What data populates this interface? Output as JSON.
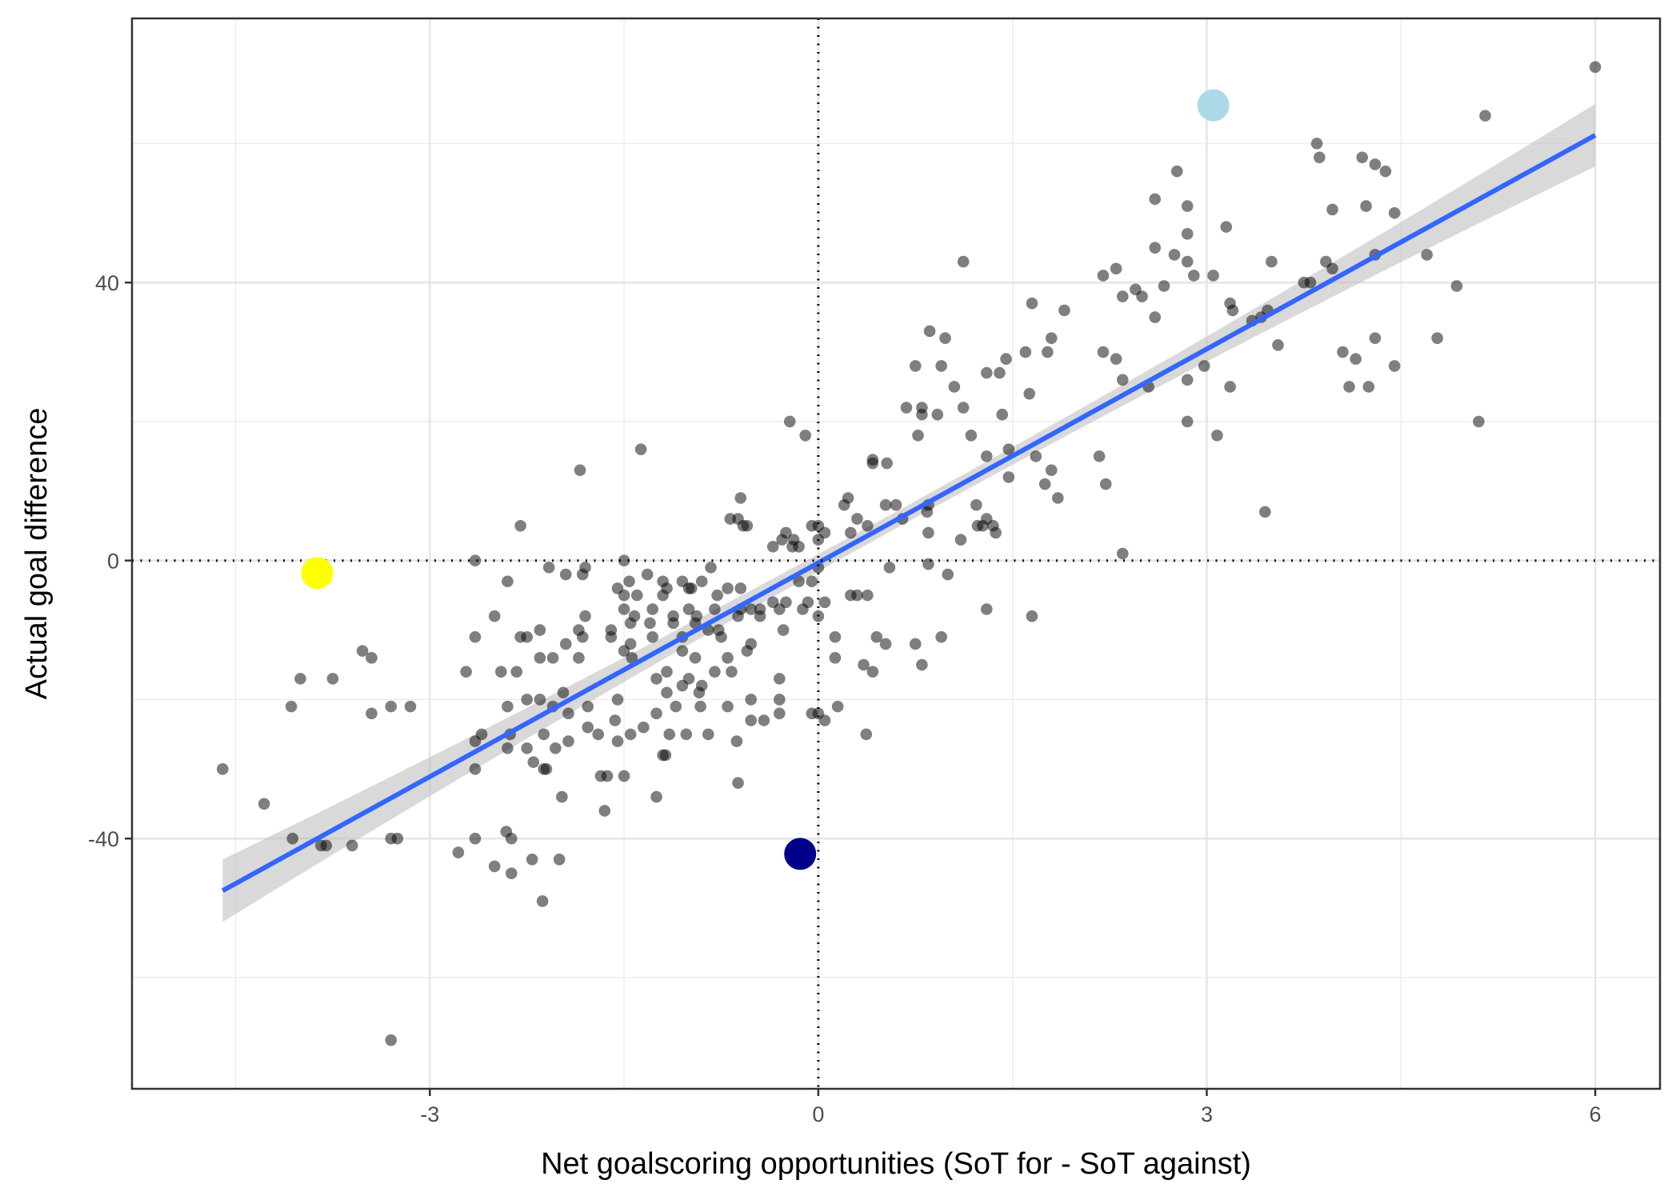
{
  "chart_data": {
    "type": "scatter",
    "xlabel": "Net goalscoring opportunities (SoT for - SoT against)",
    "ylabel": "Actual goal difference",
    "xlim": [
      -5.3,
      6.5
    ],
    "ylim": [
      -76,
      78
    ],
    "x_ticks": [
      -3,
      0,
      3,
      6
    ],
    "x_tick_labels": [
      "-3",
      "0",
      "3",
      "6"
    ],
    "y_ticks": [
      -40,
      0,
      40
    ],
    "y_tick_labels": [
      "-40",
      "0",
      "40"
    ],
    "x_minor_gridlines": [
      -4.5,
      -1.5,
      1.5,
      4.5
    ],
    "y_minor_gridlines": [
      -60,
      -20,
      20,
      60
    ],
    "grid": true,
    "reference_lines": [
      {
        "orientation": "vertical",
        "value": 0,
        "style": "dotted"
      },
      {
        "orientation": "horizontal",
        "value": 0,
        "style": "dotted"
      }
    ],
    "regression": {
      "type": "linear",
      "x_range": [
        -4.6,
        6.0
      ],
      "y_start": -47.5,
      "y_end": 61.2,
      "ci_halfwidth": [
        3.4,
        4.5
      ],
      "line_color": "#3366ff",
      "band_color": "#bfbfbf"
    },
    "point_color": "#000000",
    "point_opacity": 0.5,
    "highlights": [
      {
        "x": 3.05,
        "y": 65.5,
        "color": "#add8e6"
      },
      {
        "x": -3.87,
        "y": -1.8,
        "color": "#ffff00"
      },
      {
        "x": -0.14,
        "y": -42.2,
        "color": "#00008b"
      }
    ],
    "points": [
      [
        6.0,
        71
      ],
      [
        5.15,
        64
      ],
      [
        3.85,
        60
      ],
      [
        3.87,
        58
      ],
      [
        4.2,
        58
      ],
      [
        4.3,
        57
      ],
      [
        4.38,
        56
      ],
      [
        2.77,
        56
      ],
      [
        2.6,
        52
      ],
      [
        2.85,
        51
      ],
      [
        3.97,
        50.5
      ],
      [
        4.23,
        51
      ],
      [
        4.45,
        50
      ],
      [
        3.15,
        48
      ],
      [
        2.85,
        47
      ],
      [
        2.6,
        45
      ],
      [
        2.75,
        44
      ],
      [
        2.85,
        43
      ],
      [
        3.92,
        43
      ],
      [
        3.97,
        42
      ],
      [
        4.3,
        44
      ],
      [
        4.7,
        44
      ],
      [
        3.5,
        43
      ],
      [
        1.12,
        43
      ],
      [
        2.3,
        42
      ],
      [
        2.2,
        41
      ],
      [
        2.9,
        41
      ],
      [
        3.05,
        41
      ],
      [
        3.75,
        40
      ],
      [
        3.8,
        40
      ],
      [
        2.45,
        39
      ],
      [
        2.5,
        38
      ],
      [
        2.35,
        38
      ],
      [
        2.67,
        39.5
      ],
      [
        4.93,
        39.5
      ],
      [
        1.65,
        37
      ],
      [
        3.18,
        37
      ],
      [
        3.2,
        36
      ],
      [
        1.9,
        36
      ],
      [
        3.42,
        35
      ],
      [
        3.47,
        36
      ],
      [
        3.35,
        34.5
      ],
      [
        2.6,
        35
      ],
      [
        0.86,
        33
      ],
      [
        0.98,
        32
      ],
      [
        1.8,
        32
      ],
      [
        3.55,
        31
      ],
      [
        4.3,
        32
      ],
      [
        4.78,
        32
      ],
      [
        1.6,
        30
      ],
      [
        1.77,
        30
      ],
      [
        2.2,
        30
      ],
      [
        2.3,
        29
      ],
      [
        4.05,
        30
      ],
      [
        4.15,
        29
      ],
      [
        1.45,
        29
      ],
      [
        0.75,
        28
      ],
      [
        0.95,
        28
      ],
      [
        1.3,
        27
      ],
      [
        1.4,
        27
      ],
      [
        2.35,
        26
      ],
      [
        2.55,
        25
      ],
      [
        2.85,
        26
      ],
      [
        2.98,
        28
      ],
      [
        3.18,
        25
      ],
      [
        4.45,
        28
      ],
      [
        4.1,
        25
      ],
      [
        4.25,
        25
      ],
      [
        1.05,
        25
      ],
      [
        0.68,
        22
      ],
      [
        0.8,
        22
      ],
      [
        0.8,
        21
      ],
      [
        1.12,
        22
      ],
      [
        1.63,
        24
      ],
      [
        1.42,
        21
      ],
      [
        0.92,
        21
      ],
      [
        -0.22,
        20
      ],
      [
        -0.1,
        18
      ],
      [
        0.77,
        18
      ],
      [
        1.18,
        18
      ],
      [
        2.85,
        20
      ],
      [
        3.08,
        18
      ],
      [
        5.1,
        20
      ],
      [
        -1.37,
        16
      ],
      [
        1.47,
        16
      ],
      [
        1.3,
        15
      ],
      [
        1.68,
        15
      ],
      [
        2.17,
        15
      ],
      [
        0.42,
        14.5
      ],
      [
        0.42,
        14
      ],
      [
        0.53,
        14
      ],
      [
        1.47,
        12
      ],
      [
        1.8,
        13
      ],
      [
        1.75,
        11
      ],
      [
        2.22,
        11
      ],
      [
        1.85,
        9
      ],
      [
        -1.84,
        13
      ],
      [
        -0.6,
        9
      ],
      [
        0.23,
        9
      ],
      [
        0.2,
        8
      ],
      [
        0.52,
        8
      ],
      [
        0.6,
        8
      ],
      [
        0.85,
        8
      ],
      [
        0.84,
        7
      ],
      [
        1.22,
        8
      ],
      [
        3.45,
        7
      ],
      [
        -0.68,
        6
      ],
      [
        -0.62,
        6
      ],
      [
        -0.58,
        5
      ],
      [
        -0.55,
        5
      ],
      [
        -0.05,
        5
      ],
      [
        0.0,
        5
      ],
      [
        0.3,
        6
      ],
      [
        0.38,
        5
      ],
      [
        0.65,
        6
      ],
      [
        1.3,
        6
      ],
      [
        1.27,
        5
      ],
      [
        1.35,
        5
      ],
      [
        1.37,
        4
      ],
      [
        1.23,
        5
      ],
      [
        0.85,
        4
      ],
      [
        0.25,
        4
      ],
      [
        0.05,
        4
      ],
      [
        0.0,
        3
      ],
      [
        -0.28,
        3
      ],
      [
        -0.25,
        4
      ],
      [
        -0.19,
        3
      ],
      [
        -0.15,
        2
      ],
      [
        -0.2,
        2
      ],
      [
        -0.35,
        2
      ],
      [
        1.1,
        3
      ],
      [
        -2.3,
        5
      ],
      [
        2.35,
        1
      ],
      [
        -2.65,
        0
      ],
      [
        -1.5,
        0
      ],
      [
        -1.8,
        -1
      ],
      [
        -2.08,
        -1
      ],
      [
        -1.32,
        -2
      ],
      [
        -0.83,
        -1
      ],
      [
        0.55,
        -1
      ],
      [
        0.85,
        -0.5
      ],
      [
        1.0,
        -2
      ],
      [
        0.0,
        -1
      ],
      [
        -0.15,
        -3
      ],
      [
        -0.05,
        -3
      ],
      [
        -1.55,
        -4
      ],
      [
        -1.46,
        -3
      ],
      [
        -1.2,
        -3
      ],
      [
        -1.17,
        -4
      ],
      [
        -1.05,
        -3
      ],
      [
        -0.9,
        -3
      ],
      [
        -0.98,
        -4
      ],
      [
        -0.7,
        -4
      ],
      [
        -1.82,
        -2
      ],
      [
        -1.95,
        -2
      ],
      [
        -2.4,
        -3
      ],
      [
        -1.5,
        -5
      ],
      [
        -1.4,
        -5
      ],
      [
        -1.2,
        -5
      ],
      [
        -1.0,
        -4
      ],
      [
        -0.78,
        -5
      ],
      [
        -0.6,
        -4
      ],
      [
        -0.35,
        -6
      ],
      [
        0.25,
        -5
      ],
      [
        0.3,
        -5
      ],
      [
        0.38,
        -5
      ],
      [
        -0.3,
        -7
      ],
      [
        -0.25,
        -6
      ],
      [
        0.05,
        -6
      ],
      [
        -0.12,
        -7
      ],
      [
        -0.08,
        -6
      ],
      [
        0.0,
        -8
      ],
      [
        -1.8,
        -8
      ],
      [
        -1.5,
        -7
      ],
      [
        -1.42,
        -8
      ],
      [
        -1.28,
        -7
      ],
      [
        -1.12,
        -8
      ],
      [
        -1.0,
        -7
      ],
      [
        -0.94,
        -8
      ],
      [
        -0.8,
        -7
      ],
      [
        -0.6,
        -7
      ],
      [
        -0.52,
        -7
      ],
      [
        -0.45,
        -7
      ],
      [
        -0.45,
        -8
      ],
      [
        -0.62,
        -8
      ],
      [
        -2.5,
        -8
      ],
      [
        -1.85,
        -10
      ],
      [
        -1.6,
        -10
      ],
      [
        -1.45,
        -9
      ],
      [
        -1.3,
        -9
      ],
      [
        -1.12,
        -9
      ],
      [
        -0.95,
        -9
      ],
      [
        -0.85,
        -10
      ],
      [
        -0.77,
        -10
      ],
      [
        -1.6,
        -11
      ],
      [
        -1.82,
        -11
      ],
      [
        -1.95,
        -12
      ],
      [
        -1.45,
        -12
      ],
      [
        -1.28,
        -11
      ],
      [
        -1.05,
        -11
      ],
      [
        -2.3,
        -11
      ],
      [
        -2.15,
        -10
      ],
      [
        -2.25,
        -11
      ],
      [
        -2.65,
        -11
      ],
      [
        -0.75,
        -11
      ],
      [
        -0.52,
        -12
      ],
      [
        -0.27,
        -10
      ],
      [
        0.13,
        -11
      ],
      [
        0.45,
        -11
      ],
      [
        0.52,
        -12
      ],
      [
        0.75,
        -12
      ],
      [
        0.95,
        -11
      ],
      [
        1.3,
        -7
      ],
      [
        1.65,
        -8
      ],
      [
        -1.5,
        -13
      ],
      [
        -1.05,
        -13
      ],
      [
        -0.95,
        -14
      ],
      [
        -0.7,
        -14
      ],
      [
        -0.55,
        -13
      ],
      [
        -1.44,
        -14
      ],
      [
        -1.85,
        -14
      ],
      [
        -2.05,
        -14
      ],
      [
        -2.15,
        -14
      ],
      [
        -2.45,
        -16
      ],
      [
        -2.33,
        -16
      ],
      [
        -2.72,
        -16
      ],
      [
        -0.8,
        -16
      ],
      [
        -0.67,
        -16
      ],
      [
        -1.17,
        -16
      ],
      [
        -1.25,
        -17
      ],
      [
        -1.0,
        -17
      ],
      [
        -0.9,
        -18
      ],
      [
        -1.05,
        -18
      ],
      [
        -0.3,
        -17
      ],
      [
        0.13,
        -14
      ],
      [
        0.35,
        -15
      ],
      [
        0.42,
        -16
      ],
      [
        0.8,
        -15
      ],
      [
        -1.97,
        -19
      ],
      [
        -2.05,
        -21
      ],
      [
        -2.15,
        -20
      ],
      [
        -1.93,
        -22
      ],
      [
        -1.78,
        -21
      ],
      [
        -1.55,
        -20
      ],
      [
        -1.17,
        -19
      ],
      [
        -0.92,
        -19
      ],
      [
        -1.1,
        -21
      ],
      [
        -0.91,
        -21
      ],
      [
        -0.7,
        -21
      ],
      [
        -0.52,
        -20
      ],
      [
        -0.52,
        -23
      ],
      [
        -0.42,
        -23
      ],
      [
        -0.3,
        -20
      ],
      [
        -0.3,
        -22
      ],
      [
        -0.05,
        -22
      ],
      [
        0.0,
        -22
      ],
      [
        0.05,
        -23
      ],
      [
        0.15,
        -21
      ],
      [
        -2.4,
        -21
      ],
      [
        -2.25,
        -20
      ],
      [
        -1.78,
        -24
      ],
      [
        -1.57,
        -23
      ],
      [
        -1.25,
        -22
      ],
      [
        -1.35,
        -24
      ],
      [
        -1.15,
        -25
      ],
      [
        -1.02,
        -25
      ],
      [
        -0.85,
        -25
      ],
      [
        -0.63,
        -26
      ],
      [
        -1.7,
        -25
      ],
      [
        -1.93,
        -26
      ],
      [
        -2.12,
        -25
      ],
      [
        -2.03,
        -27
      ],
      [
        -2.25,
        -27
      ],
      [
        -1.45,
        -25
      ],
      [
        -1.55,
        -26
      ],
      [
        -2.6,
        -25
      ],
      [
        -2.65,
        -26
      ],
      [
        -2.38,
        -25
      ],
      [
        -2.4,
        -27
      ],
      [
        -2.2,
        -29
      ],
      [
        -2.12,
        -30
      ],
      [
        -2.1,
        -30
      ],
      [
        -1.63,
        -31
      ],
      [
        -1.68,
        -31
      ],
      [
        -1.5,
        -31
      ],
      [
        -1.2,
        -28
      ],
      [
        -1.18,
        -28
      ],
      [
        -1.25,
        -34
      ],
      [
        -0.62,
        -32
      ],
      [
        -1.98,
        -34
      ],
      [
        -1.65,
        -36
      ],
      [
        -2.65,
        -30
      ],
      [
        0.37,
        -25
      ],
      [
        -3.3,
        -21
      ],
      [
        -3.15,
        -21
      ],
      [
        -3.45,
        -22
      ],
      [
        -4.07,
        -21
      ],
      [
        -4.0,
        -17
      ],
      [
        -3.75,
        -17
      ],
      [
        -3.45,
        -14
      ],
      [
        -3.52,
        -13
      ],
      [
        -4.6,
        -30
      ],
      [
        -4.28,
        -35
      ],
      [
        -4.06,
        -40
      ],
      [
        -3.84,
        -41
      ],
      [
        -3.8,
        -41
      ],
      [
        -3.25,
        -40
      ],
      [
        -3.6,
        -41
      ],
      [
        -2.65,
        -40
      ],
      [
        -2.78,
        -42
      ],
      [
        -2.5,
        -44
      ],
      [
        -2.41,
        -39
      ],
      [
        -2.37,
        -40
      ],
      [
        -2.37,
        -45
      ],
      [
        -2.21,
        -43
      ],
      [
        -2.0,
        -43
      ],
      [
        -2.13,
        -49
      ],
      [
        -3.3,
        -40
      ],
      [
        -3.3,
        -69
      ]
    ]
  }
}
